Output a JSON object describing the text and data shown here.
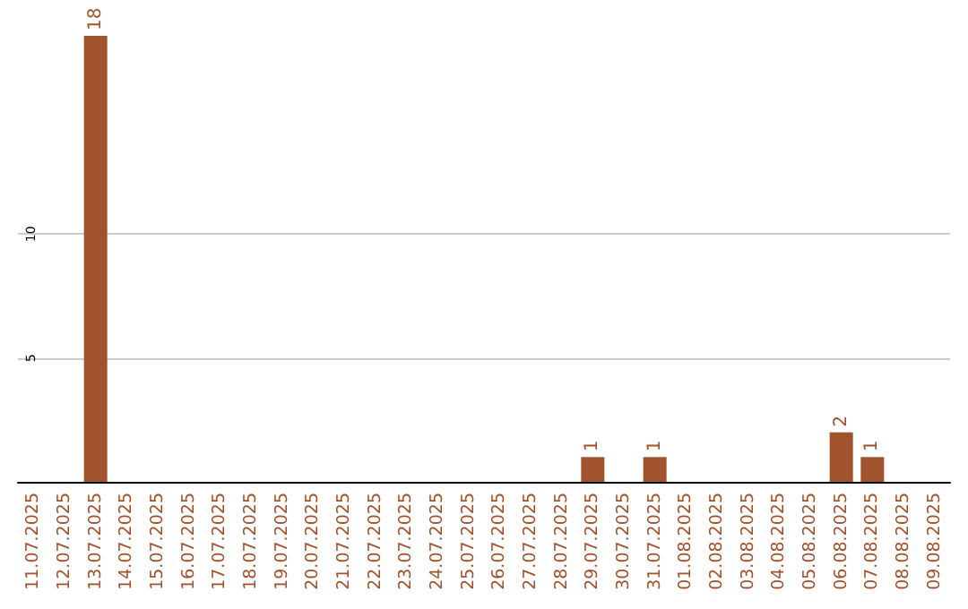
{
  "chart_data": {
    "type": "bar",
    "categories": [
      "11.07.2025",
      "12.07.2025",
      "13.07.2025",
      "14.07.2025",
      "15.07.2025",
      "16.07.2025",
      "17.07.2025",
      "18.07.2025",
      "19.07.2025",
      "20.07.2025",
      "21.07.2025",
      "22.07.2025",
      "23.07.2025",
      "24.07.2025",
      "25.07.2025",
      "26.07.2025",
      "27.07.2025",
      "28.07.2025",
      "29.07.2025",
      "30.07.2025",
      "31.07.2025",
      "01.08.2025",
      "02.08.2025",
      "03.08.2025",
      "04.08.2025",
      "05.08.2025",
      "06.08.2025",
      "07.08.2025",
      "08.08.2025",
      "09.08.2025"
    ],
    "values": [
      0,
      0,
      18,
      0,
      0,
      0,
      0,
      0,
      0,
      0,
      0,
      0,
      0,
      0,
      0,
      0,
      0,
      0,
      1,
      0,
      1,
      0,
      0,
      0,
      0,
      0,
      2,
      1,
      0,
      0
    ],
    "value_labels": [
      null,
      null,
      "18",
      null,
      null,
      null,
      null,
      null,
      null,
      null,
      null,
      null,
      null,
      null,
      null,
      null,
      null,
      null,
      "1",
      null,
      "1",
      null,
      null,
      null,
      null,
      null,
      "2",
      "1",
      null,
      null
    ],
    "color": "#a0522d",
    "ylim": [
      0,
      18
    ],
    "yticks": [
      5,
      10
    ],
    "grid": "y"
  }
}
